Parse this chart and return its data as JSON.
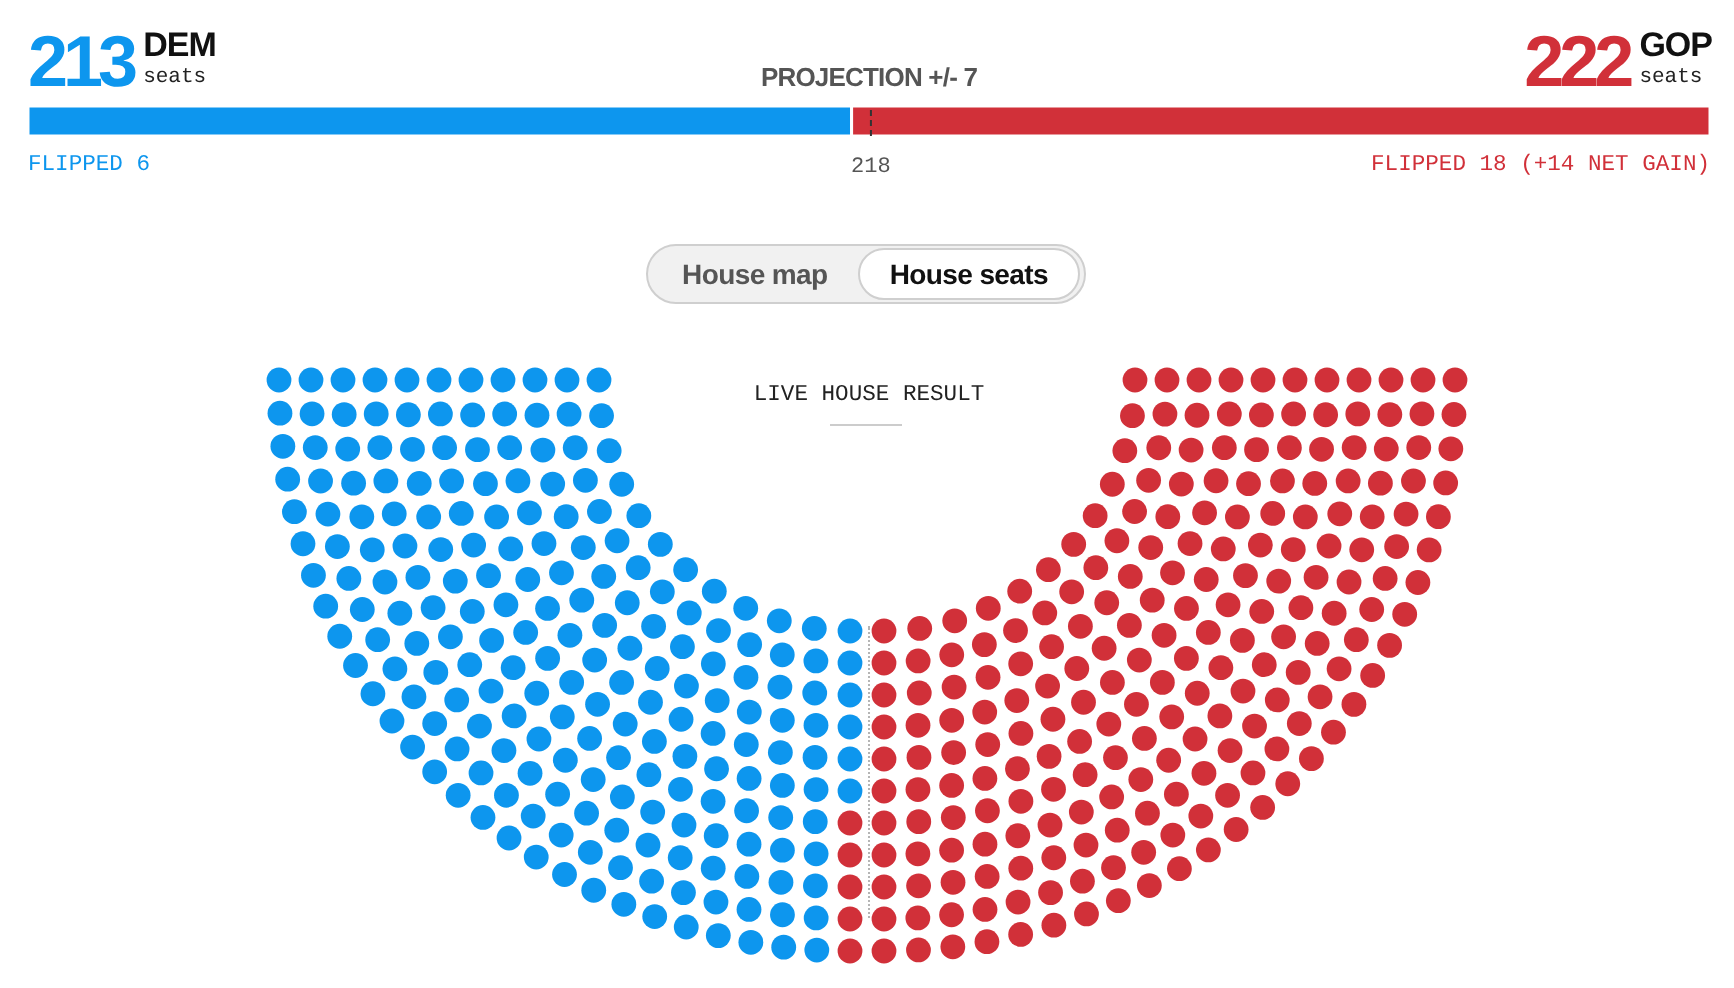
{
  "chart_data": [
    {
      "type": "bar",
      "orientation": "horizontal",
      "stacked": true,
      "title": "PROJECTION +/- 7",
      "categories": [
        null
      ],
      "series": [
        {
          "name": "DEM",
          "color": "#0d96ee",
          "values": [
            213
          ]
        },
        {
          "name": "GOP",
          "color": "#d13039",
          "values": [
            222
          ]
        }
      ],
      "xlim": [
        0,
        435
      ],
      "tick_labels": false,
      "data_labels": true,
      "ref_lines": [
        {
          "axis": "x",
          "value": 218,
          "label": "218",
          "color": "#333333",
          "line_style": "dashed"
        }
      ],
      "annotations": [
        "seats",
        "FLIPPED 6",
        "seats",
        "FLIPPED 18 (+14 NET GAIN)"
      ]
    },
    {
      "type": "other",
      "title": "LIVE HOUSE RESULT",
      "annotations": [
        "House map",
        "House seats"
      ]
    }
  ]
}
